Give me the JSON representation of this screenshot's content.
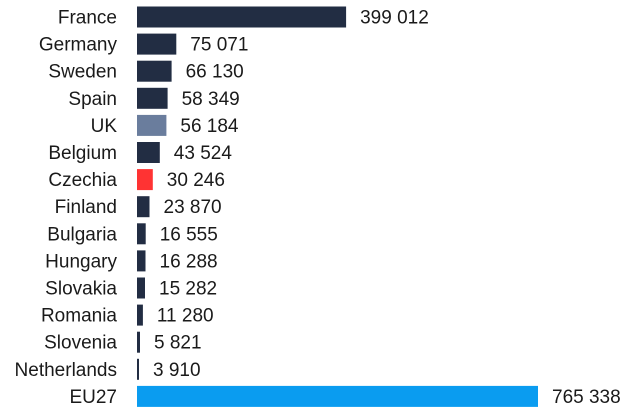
{
  "chart_data": {
    "type": "bar",
    "orientation": "horizontal",
    "categories": [
      "France",
      "Germany",
      "Sweden",
      "Spain",
      "UK",
      "Belgium",
      "Czechia",
      "Finland",
      "Bulgaria",
      "Hungary",
      "Slovakia",
      "Romania",
      "Slovenia",
      "Netherlands",
      "EU27"
    ],
    "values": [
      399012,
      75071,
      66130,
      58349,
      56184,
      43524,
      30246,
      23870,
      16555,
      16288,
      15282,
      11280,
      5821,
      3910,
      765338
    ],
    "value_labels": [
      "399 012",
      "75 071",
      "66 130",
      "58 349",
      "56 184",
      "43 524",
      "30 246",
      "23 870",
      "16 555",
      "16 288",
      "15 282",
      "11 280",
      "5 821",
      "3 910",
      "765 338"
    ],
    "bar_colors": [
      "#222d43",
      "#222d43",
      "#222d43",
      "#222d43",
      "#6a7d9d",
      "#222d43",
      "#ff3333",
      "#222d43",
      "#222d43",
      "#222d43",
      "#222d43",
      "#222d43",
      "#222d43",
      "#222d43",
      "#0a9cf0"
    ],
    "title": "",
    "xlabel": "",
    "ylabel": "",
    "xlim": [
      0,
      765338
    ],
    "grid": false,
    "legend": "none"
  }
}
